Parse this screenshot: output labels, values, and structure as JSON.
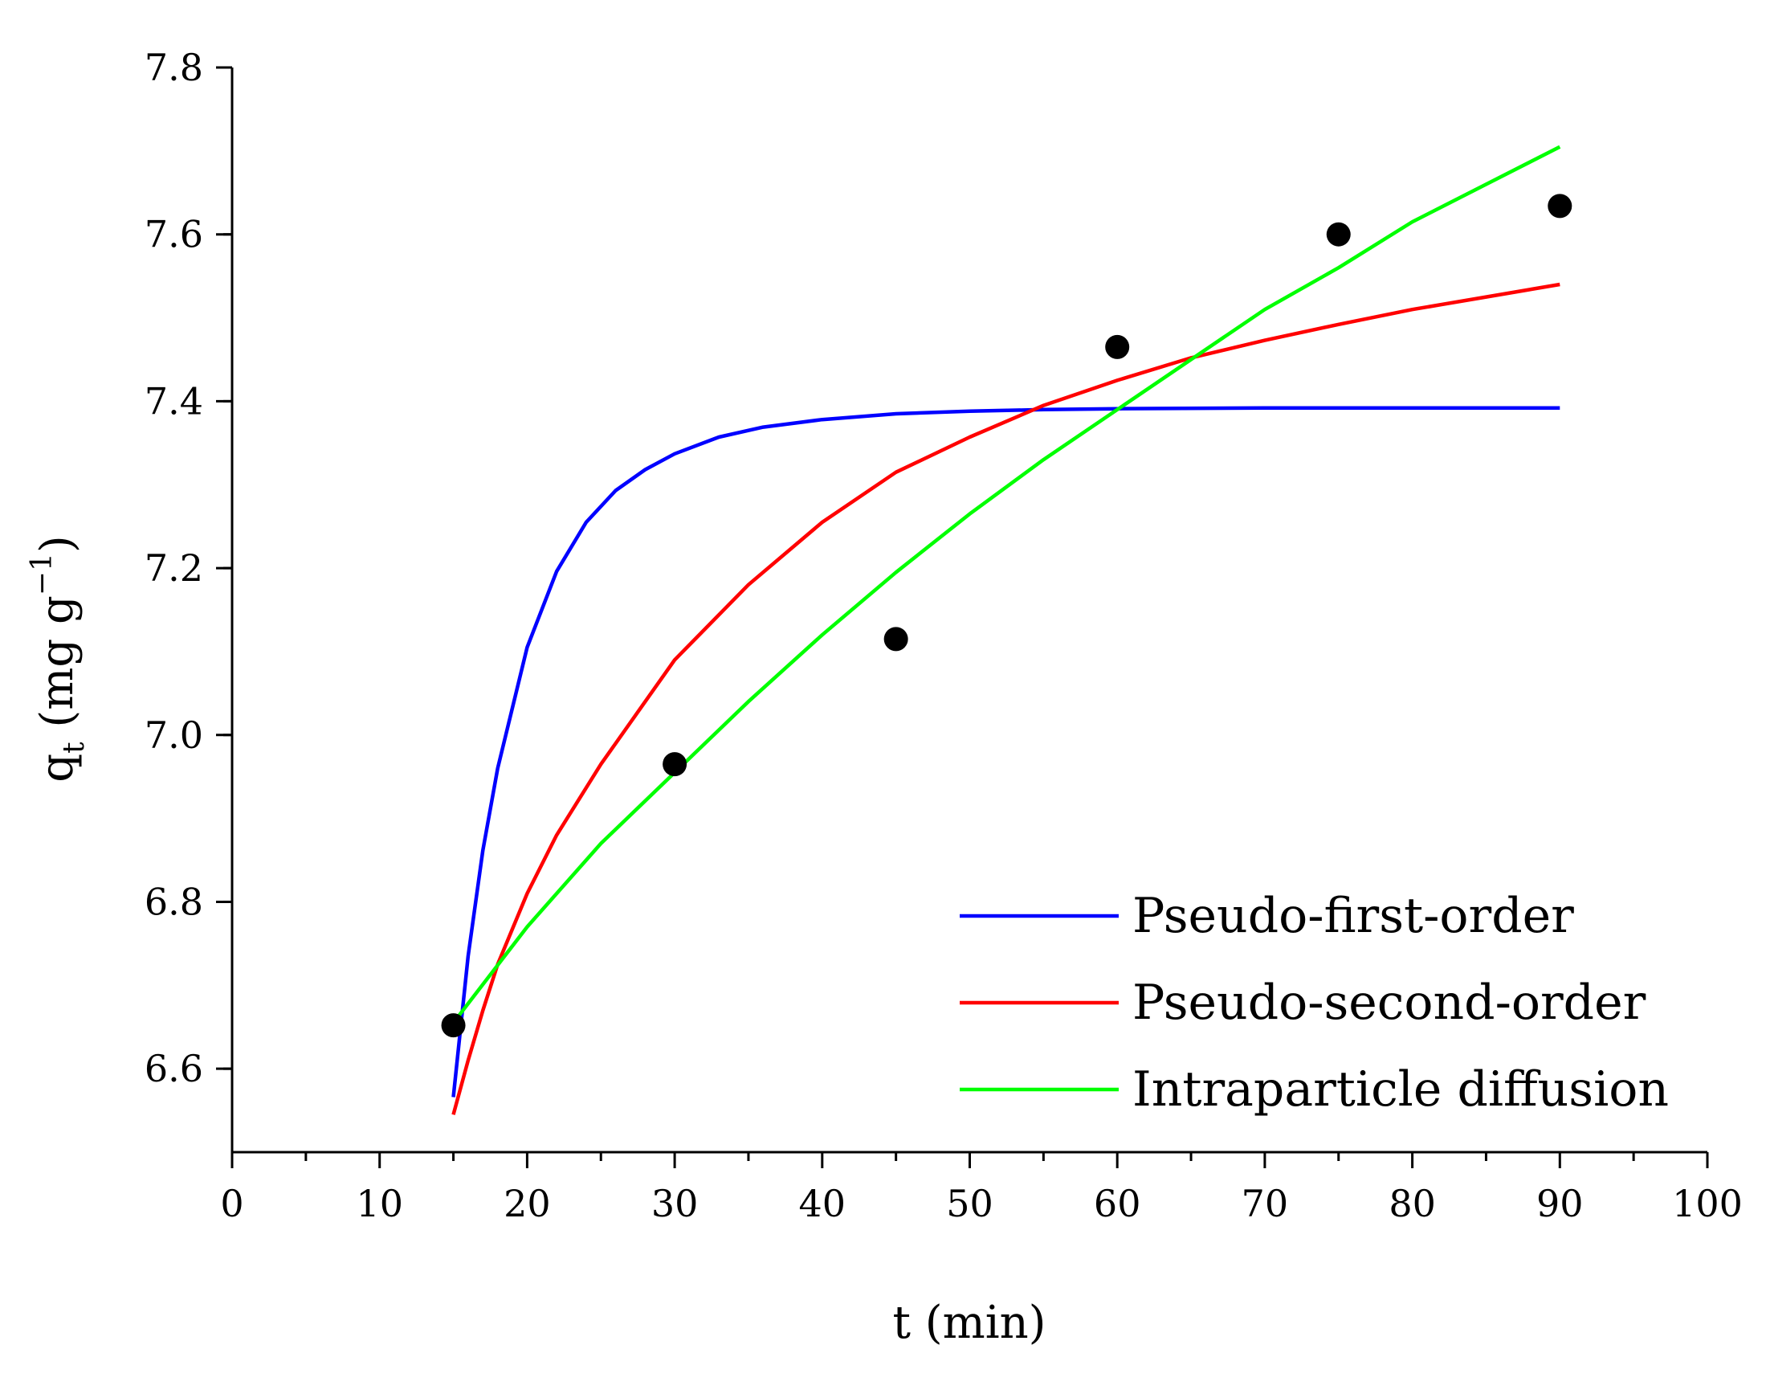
{
  "chart_data": {
    "type": "scatter",
    "title": "",
    "xlabel": "t (min)",
    "ylabel": {
      "base": "q",
      "sub": "t",
      "unit_open": " (mg g",
      "sup": "−1",
      "unit_close": ")"
    },
    "xlim": [
      0,
      100
    ],
    "ylim": [
      6.5,
      7.8
    ],
    "x_ticks": [
      0,
      10,
      20,
      30,
      40,
      50,
      60,
      70,
      80,
      90,
      100
    ],
    "x_minor_step": 5,
    "y_ticks": [
      6.6,
      6.8,
      7.0,
      7.2,
      7.4,
      7.6,
      7.8
    ],
    "y_minor_step": 0.1,
    "grid": false,
    "legend_position": "bottom-right",
    "points": {
      "x": [
        15,
        30,
        45,
        60,
        75,
        90
      ],
      "y": [
        6.652,
        6.965,
        7.115,
        7.465,
        7.6,
        7.634
      ],
      "color": "#000000"
    },
    "series": [
      {
        "name": "Pseudo-first-order",
        "color": "#0000ff",
        "x": [
          15,
          16,
          17,
          18,
          20,
          22,
          24,
          26,
          28,
          30,
          33,
          36,
          40,
          45,
          50,
          55,
          60,
          70,
          80,
          90
        ],
        "y": [
          6.566,
          6.735,
          6.862,
          6.96,
          7.105,
          7.196,
          7.255,
          7.293,
          7.318,
          7.337,
          7.357,
          7.369,
          7.378,
          7.385,
          7.388,
          7.39,
          7.391,
          7.392,
          7.392,
          7.392
        ]
      },
      {
        "name": "Pseudo-second-order",
        "color": "#ff0000",
        "x": [
          15,
          16,
          17,
          18,
          20,
          22,
          25,
          28,
          30,
          35,
          40,
          45,
          50,
          55,
          60,
          65,
          70,
          75,
          80,
          85,
          90
        ],
        "y": [
          6.545,
          6.61,
          6.67,
          6.725,
          6.81,
          6.88,
          6.965,
          7.04,
          7.09,
          7.18,
          7.255,
          7.315,
          7.357,
          7.395,
          7.425,
          7.452,
          7.473,
          7.492,
          7.51,
          7.525,
          7.54
        ]
      },
      {
        "name": "Intraparticle diffusion",
        "color": "#00ff00",
        "x": [
          15,
          20,
          25,
          30,
          35,
          40,
          45,
          50,
          55,
          60,
          65,
          70,
          75,
          80,
          85,
          90
        ],
        "y": [
          6.655,
          6.77,
          6.87,
          6.955,
          7.04,
          7.12,
          7.195,
          7.265,
          7.33,
          7.39,
          7.45,
          7.51,
          7.56,
          7.615,
          7.66,
          7.705
        ]
      }
    ]
  }
}
